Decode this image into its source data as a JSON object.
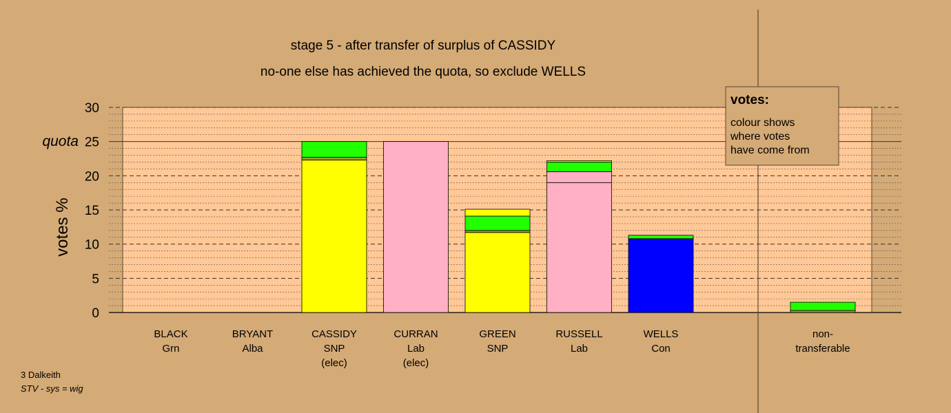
{
  "chart_data": {
    "type": "bar",
    "stacked": true,
    "title": "stage 5 - after transfer of surplus of CASSIDY",
    "subtitle": "no-one else has achieved the quota, so exclude WELLS",
    "ylabel": "votes %",
    "ylim": [
      0,
      30
    ],
    "yticks": [
      "0",
      "5",
      "10",
      "15",
      "20",
      "25",
      "30"
    ],
    "quota": 25,
    "quota_label": "quota",
    "grid": true,
    "colors": {
      "SNP": "#ffff00",
      "Lab": "#ffb0c4",
      "Con": "#0000ff",
      "Grn": "#22ff00",
      "Alba": "#9c9c3c",
      "plot_bg": "#ffc896",
      "page_bg": "#d4aa76"
    },
    "categories": [
      {
        "name": "BLACK",
        "party": "Grn",
        "status": "",
        "segments": []
      },
      {
        "name": "BRYANT",
        "party": "Alba",
        "status": "",
        "segments": []
      },
      {
        "name": "CASSIDY",
        "party": "SNP",
        "status": "(elec)",
        "segments": [
          {
            "from": "SNP",
            "value": 22.3
          },
          {
            "from": "Alba",
            "value": 0.4
          },
          {
            "from": "Grn",
            "value": 2.3
          }
        ]
      },
      {
        "name": "CURRAN",
        "party": "Lab",
        "status": "(elec)",
        "segments": [
          {
            "from": "Lab",
            "value": 25.0
          }
        ]
      },
      {
        "name": "GREEN",
        "party": "SNP",
        "status": "",
        "segments": [
          {
            "from": "SNP",
            "value": 11.7
          },
          {
            "from": "Alba",
            "value": 0.3
          },
          {
            "from": "Grn",
            "value": 2.1
          },
          {
            "from": "SNP",
            "value": 1.0
          }
        ]
      },
      {
        "name": "RUSSELL",
        "party": "Lab",
        "status": "",
        "segments": [
          {
            "from": "Lab",
            "value": 19.0
          },
          {
            "from": "Lab",
            "value": 1.6
          },
          {
            "from": "Grn",
            "value": 1.4
          },
          {
            "from": "SNP",
            "value": 0.2
          }
        ]
      },
      {
        "name": "WELLS",
        "party": "Con",
        "status": "",
        "segments": [
          {
            "from": "Con",
            "value": 10.8
          },
          {
            "from": "Grn",
            "value": 0.5
          }
        ]
      }
    ],
    "non_transferable": {
      "label": [
        "non-",
        "transferable"
      ],
      "segments": [
        {
          "from": "Alba",
          "value": 0.3
        },
        {
          "from": "Grn",
          "value": 1.2
        }
      ]
    },
    "legend": {
      "title": "votes:",
      "lines": [
        "colour shows",
        "where votes",
        "have come from"
      ],
      "position": "top-right"
    }
  },
  "footer": {
    "line1": "3 Dalkeith",
    "line2": "STV - sys = wig"
  }
}
